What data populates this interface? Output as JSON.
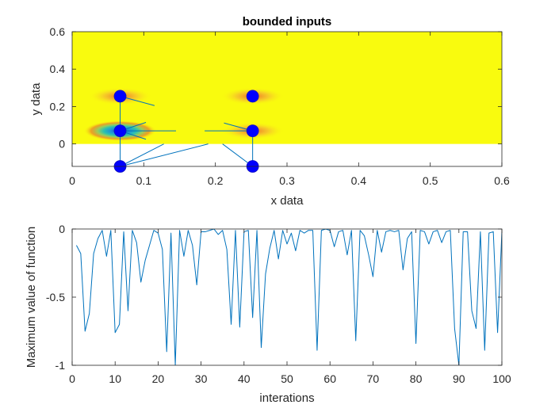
{
  "chart_data": [
    {
      "type": "scatter",
      "title": "bounded inputs",
      "xlabel": "x data",
      "ylabel": "y data",
      "xlim": [
        0,
        0.6
      ],
      "ylim": [
        -0.12,
        0.6
      ],
      "xticks": [
        0,
        0.1,
        0.2,
        0.3,
        0.4,
        0.5,
        0.6
      ],
      "xtick_labels": [
        "0",
        "0.1",
        "0.2",
        "0.3",
        "0.4",
        "0.5",
        "0.6"
      ],
      "yticks": [
        0,
        0.2,
        0.4,
        0.6
      ],
      "ytick_labels": [
        "0",
        "0.2",
        "0.4",
        "0.6"
      ],
      "background": {
        "type": "heatmap",
        "x_range": [
          0,
          0.6
        ],
        "y_range": [
          0,
          0.6
        ],
        "base_color": "#f9fb0e"
      },
      "heat_spots": [
        {
          "x": 0.067,
          "y": 0.255,
          "kind": "warm"
        },
        {
          "x": 0.067,
          "y": 0.07,
          "kind": "cold"
        },
        {
          "x": 0.252,
          "y": 0.255,
          "kind": "warm"
        },
        {
          "x": 0.252,
          "y": 0.07,
          "kind": "warm"
        }
      ],
      "points": [
        {
          "x": 0.067,
          "y": 0.255
        },
        {
          "x": 0.067,
          "y": 0.07
        },
        {
          "x": 0.067,
          "y": -0.12
        },
        {
          "x": 0.252,
          "y": 0.255
        },
        {
          "x": 0.252,
          "y": 0.07
        },
        {
          "x": 0.252,
          "y": -0.12
        }
      ],
      "quiver": [
        {
          "x1": 0.067,
          "y1": 0.255,
          "x2": 0.115,
          "y2": 0.205
        },
        {
          "x1": 0.067,
          "y1": 0.255,
          "x2": 0.067,
          "y2": -0.12
        },
        {
          "x1": 0.067,
          "y1": 0.07,
          "x2": 0.145,
          "y2": 0.07
        },
        {
          "x1": 0.067,
          "y1": 0.07,
          "x2": 0.103,
          "y2": 0.115
        },
        {
          "x1": 0.067,
          "y1": 0.07,
          "x2": 0.103,
          "y2": 0.025
        },
        {
          "x1": 0.067,
          "y1": -0.12,
          "x2": 0.128,
          "y2": 0.0
        },
        {
          "x1": 0.067,
          "y1": -0.12,
          "x2": 0.19,
          "y2": 0.0
        },
        {
          "x1": 0.21,
          "y1": 0.0,
          "x2": 0.252,
          "y2": -0.12
        },
        {
          "x1": 0.185,
          "y1": 0.07,
          "x2": 0.252,
          "y2": 0.07
        },
        {
          "x1": 0.212,
          "y1": 0.112,
          "x2": 0.252,
          "y2": 0.07
        },
        {
          "x1": 0.252,
          "y1": 0.07,
          "x2": 0.252,
          "y2": -0.12
        }
      ],
      "point_color": "#0000ff",
      "line_color": "#0072bd"
    },
    {
      "type": "line",
      "title": "",
      "xlabel": "interations",
      "ylabel": "Maximum value of function",
      "xlim": [
        0,
        100
      ],
      "ylim": [
        -1,
        0
      ],
      "xticks": [
        0,
        10,
        20,
        30,
        40,
        50,
        60,
        70,
        80,
        90,
        100
      ],
      "xtick_labels": [
        "0",
        "10",
        "20",
        "30",
        "40",
        "50",
        "60",
        "70",
        "80",
        "90",
        "100"
      ],
      "yticks": [
        -1,
        -0.5,
        0
      ],
      "ytick_labels": [
        "-1",
        "-0.5",
        "0"
      ],
      "line_color": "#0072bd",
      "x": [
        1,
        2,
        3,
        4,
        5,
        6,
        7,
        8,
        9,
        10,
        11,
        12,
        13,
        14,
        15,
        16,
        17,
        18,
        19,
        20,
        21,
        22,
        23,
        24,
        25,
        26,
        27,
        28,
        29,
        30,
        31,
        32,
        33,
        34,
        35,
        36,
        37,
        38,
        39,
        40,
        41,
        42,
        43,
        44,
        45,
        46,
        47,
        48,
        49,
        50,
        51,
        52,
        53,
        54,
        55,
        56,
        57,
        58,
        59,
        60,
        61,
        62,
        63,
        64,
        65,
        66,
        67,
        68,
        69,
        70,
        71,
        72,
        73,
        74,
        75,
        76,
        77,
        78,
        79,
        80,
        81,
        82,
        83,
        84,
        85,
        86,
        87,
        88,
        89,
        90,
        91,
        92,
        93,
        94,
        95,
        96,
        97,
        98,
        99,
        100
      ],
      "y": [
        -0.12,
        -0.18,
        -0.75,
        -0.62,
        -0.18,
        -0.07,
        -0.01,
        -0.2,
        -0.01,
        -0.76,
        -0.7,
        -0.02,
        -0.6,
        -0.01,
        -0.1,
        -0.39,
        -0.23,
        -0.12,
        -0.01,
        -0.03,
        -0.15,
        -0.9,
        -0.03,
        -1.0,
        -0.01,
        -0.2,
        -0.01,
        -0.12,
        -0.41,
        -0.02,
        -0.02,
        -0.01,
        0.0,
        -0.04,
        -0.01,
        -0.15,
        -0.7,
        -0.01,
        -0.72,
        -0.02,
        -0.01,
        -0.65,
        -0.01,
        -0.87,
        -0.33,
        -0.14,
        -0.01,
        -0.22,
        -0.01,
        -0.11,
        -0.03,
        -0.16,
        -0.01,
        -0.03,
        -0.01,
        -0.01,
        -0.89,
        -0.01,
        0.0,
        -0.01,
        -0.13,
        -0.02,
        -0.01,
        -0.19,
        -0.01,
        -0.82,
        -0.01,
        -0.05,
        -0.19,
        -0.35,
        -0.01,
        -0.17,
        -0.02,
        -0.01,
        -0.02,
        -0.01,
        -0.3,
        -0.07,
        -0.02,
        -0.84,
        -0.01,
        -0.02,
        -0.11,
        -0.02,
        -0.01,
        -0.1,
        -0.02,
        -0.01,
        -0.73,
        -1.0,
        -0.02,
        -0.02,
        -0.6,
        -0.73,
        -0.02,
        -0.89,
        -0.03,
        -0.02,
        -0.76,
        -0.02
      ]
    }
  ]
}
